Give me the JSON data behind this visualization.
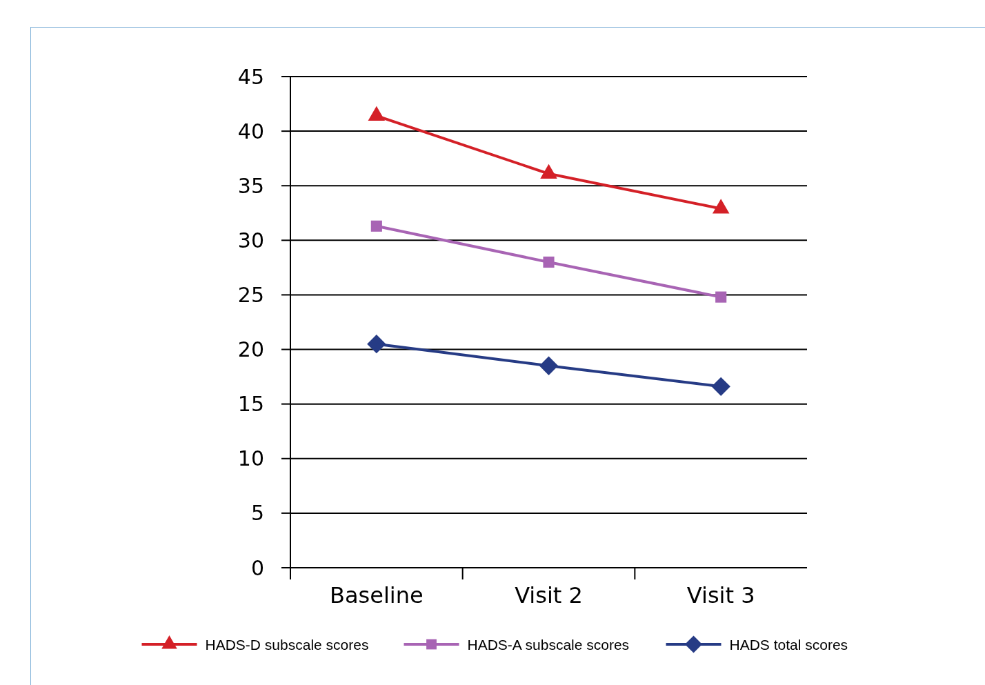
{
  "chart_data": {
    "type": "line",
    "categories": [
      "Baseline",
      "Visit 2",
      "Visit 3"
    ],
    "series": [
      {
        "name": "HADS-D subscale scores",
        "color": "#d42027",
        "marker": "triangle",
        "values": [
          41.4,
          36.1,
          32.9
        ]
      },
      {
        "name": "HADS-A subscale scores",
        "color": "#a864b4",
        "marker": "square",
        "values": [
          31.3,
          28.0,
          24.8
        ]
      },
      {
        "name": "HADS total scores",
        "color": "#263b85",
        "marker": "diamond",
        "values": [
          20.5,
          18.5,
          16.6
        ]
      }
    ],
    "ylim": [
      0,
      45
    ],
    "yticks": [
      0,
      5,
      10,
      15,
      20,
      25,
      30,
      35,
      40,
      45
    ],
    "grid": "y",
    "legend": "bottom",
    "line_style": "solid"
  }
}
